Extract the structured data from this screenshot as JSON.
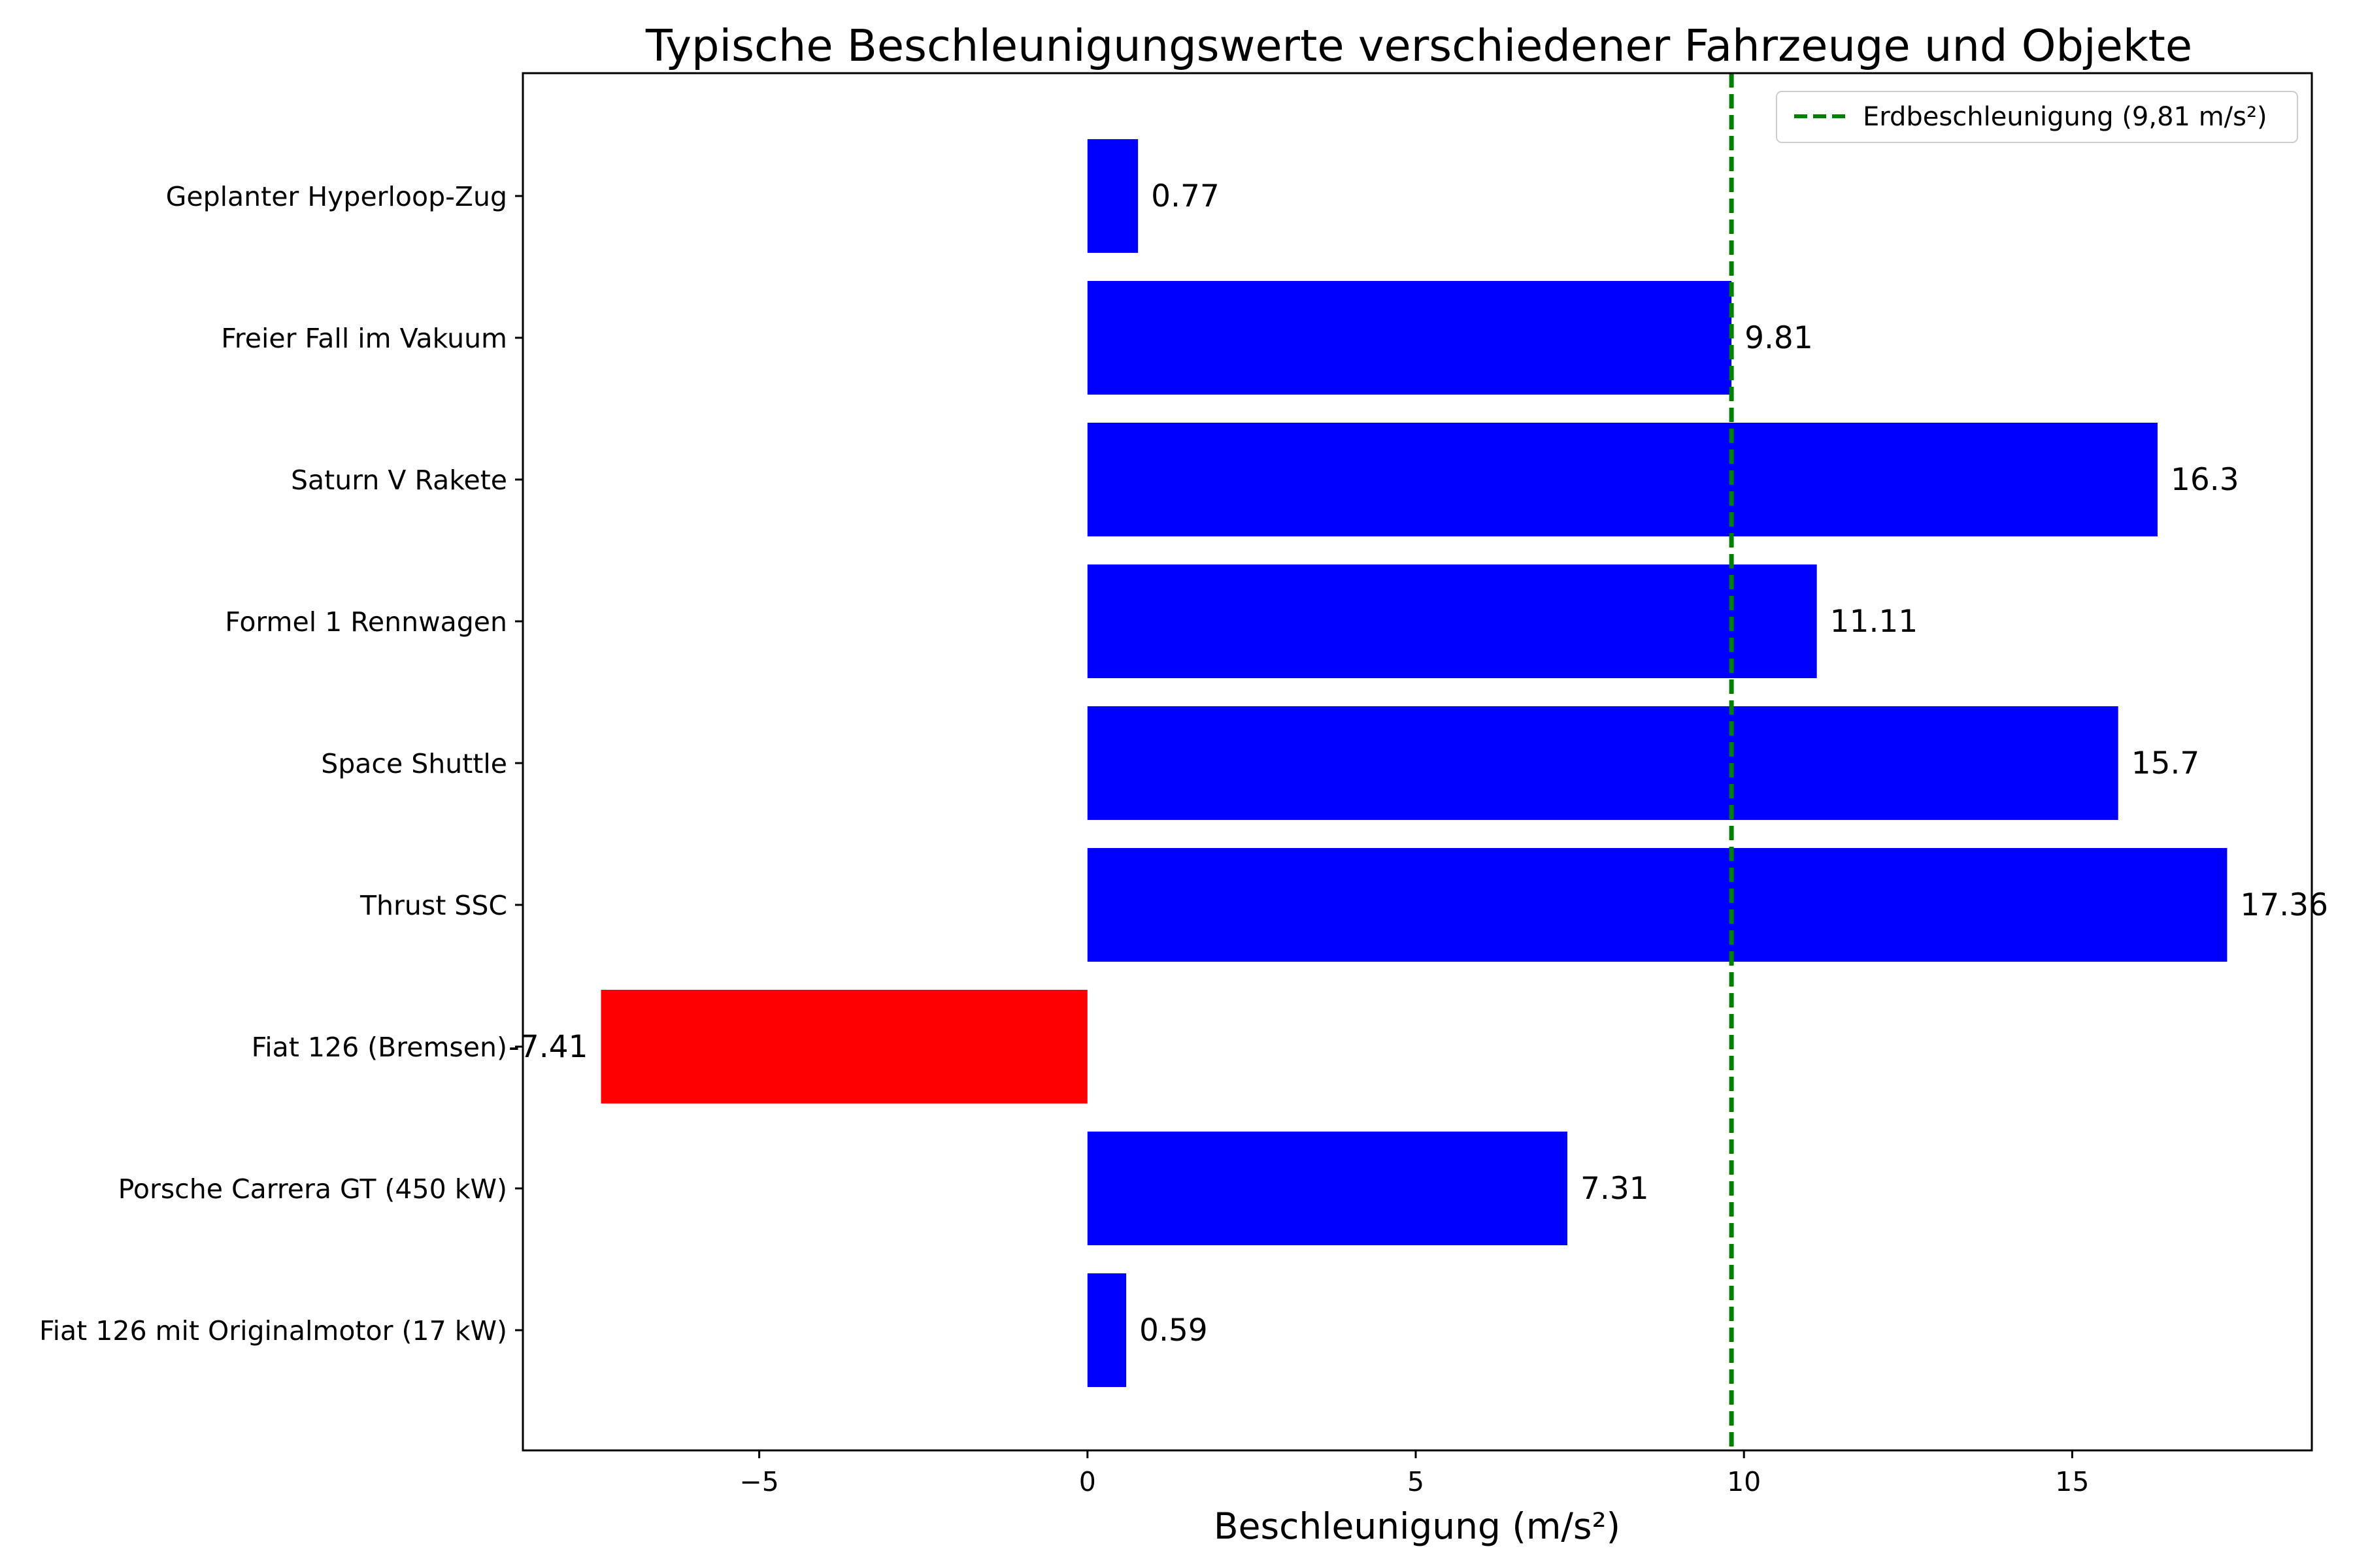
{
  "chart_data": {
    "type": "bar",
    "orientation": "horizontal",
    "title": "Typische Beschleunigungswerte verschiedener Fahrzeuge und Objekte",
    "xlabel": "Beschleunigung (m/s²)",
    "ylabel": "",
    "xlim": [
      -8.6,
      18.65
    ],
    "xticks": [
      {
        "value": -5,
        "label": "−5"
      },
      {
        "value": 0,
        "label": "0"
      },
      {
        "value": 5,
        "label": "5"
      },
      {
        "value": 10,
        "label": "10"
      },
      {
        "value": 15,
        "label": "15"
      }
    ],
    "categories": [
      "Fiat 126 mit Originalmotor (17 kW)",
      "Porsche Carrera GT (450 kW)",
      "Fiat 126 (Bremsen)",
      "Thrust SSC",
      "Space Shuttle",
      "Formel 1 Rennwagen",
      "Saturn V Rakete",
      "Freier Fall im Vakuum",
      "Geplanter Hyperloop-Zug"
    ],
    "values": [
      0.59,
      7.31,
      -7.41,
      17.36,
      15.7,
      11.11,
      16.3,
      9.81,
      0.77
    ],
    "value_labels": [
      "0.59",
      "7.31",
      "-7.41",
      "17.36",
      "15.7",
      "11.11",
      "16.3",
      "9.81",
      "0.77"
    ],
    "bar_colors": [
      "#0000ff",
      "#0000ff",
      "#ff0000",
      "#0000ff",
      "#0000ff",
      "#0000ff",
      "#0000ff",
      "#0000ff",
      "#0000ff"
    ],
    "reference_line": {
      "value": 9.81,
      "label": "Erdbeschleunigung (9,81 m/s²)",
      "color": "#008000",
      "style": "dashed"
    },
    "legend_position": "top-right",
    "grid": false
  }
}
